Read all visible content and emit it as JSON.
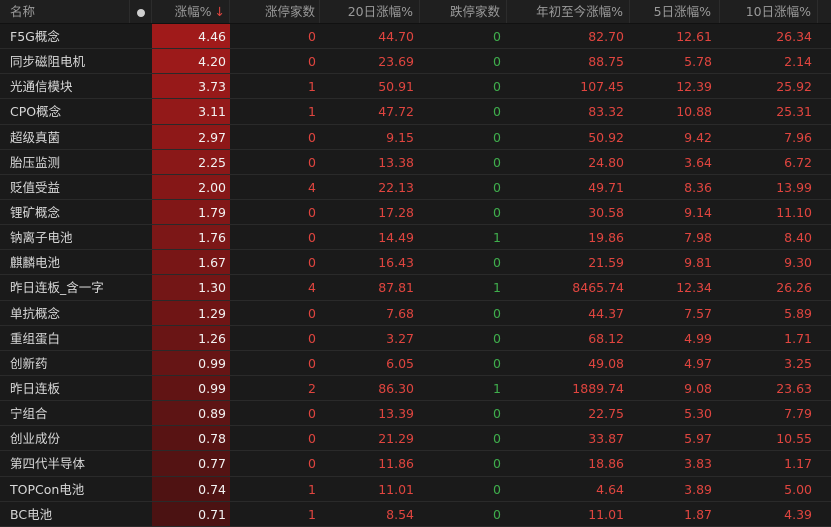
{
  "header": {
    "name": "名称",
    "dot_icon": "circle-dot-icon",
    "change": "涨幅%",
    "sort_icon": "↓",
    "limit_up": "涨停家数",
    "d20": "20日涨幅%",
    "limit_down": "跌停家数",
    "ytd": "年初至今涨幅%",
    "d5": "5日涨幅%",
    "d10": "10日涨幅%"
  },
  "colors": {
    "up": "#e0453f",
    "down": "#3fae4c",
    "highlight_bg": "#a01a1a"
  },
  "rows": [
    {
      "name": "F5G概念",
      "chg": "4.46",
      "zt": "0",
      "d20": "44.70",
      "dt": "0",
      "ytd": "82.70",
      "d5": "12.61",
      "d10": "26.34"
    },
    {
      "name": "同步磁阻电机",
      "chg": "4.20",
      "zt": "0",
      "d20": "23.69",
      "dt": "0",
      "ytd": "88.75",
      "d5": "5.78",
      "d10": "2.14"
    },
    {
      "name": "光通信模块",
      "chg": "3.73",
      "zt": "1",
      "d20": "50.91",
      "dt": "0",
      "ytd": "107.45",
      "d5": "12.39",
      "d10": "25.92"
    },
    {
      "name": "CPO概念",
      "chg": "3.11",
      "zt": "1",
      "d20": "47.72",
      "dt": "0",
      "ytd": "83.32",
      "d5": "10.88",
      "d10": "25.31"
    },
    {
      "name": "超级真菌",
      "chg": "2.97",
      "zt": "0",
      "d20": "9.15",
      "dt": "0",
      "ytd": "50.92",
      "d5": "9.42",
      "d10": "7.96"
    },
    {
      "name": "胎压监测",
      "chg": "2.25",
      "zt": "0",
      "d20": "13.38",
      "dt": "0",
      "ytd": "24.80",
      "d5": "3.64",
      "d10": "6.72"
    },
    {
      "name": "贬值受益",
      "chg": "2.00",
      "zt": "4",
      "d20": "22.13",
      "dt": "0",
      "ytd": "49.71",
      "d5": "8.36",
      "d10": "13.99"
    },
    {
      "name": "锂矿概念",
      "chg": "1.79",
      "zt": "0",
      "d20": "17.28",
      "dt": "0",
      "ytd": "30.58",
      "d5": "9.14",
      "d10": "11.10"
    },
    {
      "name": "钠离子电池",
      "chg": "1.76",
      "zt": "0",
      "d20": "14.49",
      "dt": "1",
      "ytd": "19.86",
      "d5": "7.98",
      "d10": "8.40"
    },
    {
      "name": "麒麟电池",
      "chg": "1.67",
      "zt": "0",
      "d20": "16.43",
      "dt": "0",
      "ytd": "21.59",
      "d5": "9.81",
      "d10": "9.30"
    },
    {
      "name": "昨日连板_含一字",
      "chg": "1.30",
      "zt": "4",
      "d20": "87.81",
      "dt": "1",
      "ytd": "8465.74",
      "d5": "12.34",
      "d10": "26.26"
    },
    {
      "name": "单抗概念",
      "chg": "1.29",
      "zt": "0",
      "d20": "7.68",
      "dt": "0",
      "ytd": "44.37",
      "d5": "7.57",
      "d10": "5.89"
    },
    {
      "name": "重组蛋白",
      "chg": "1.26",
      "zt": "0",
      "d20": "3.27",
      "dt": "0",
      "ytd": "68.12",
      "d5": "4.99",
      "d10": "1.71"
    },
    {
      "name": "创新药",
      "chg": "0.99",
      "zt": "0",
      "d20": "6.05",
      "dt": "0",
      "ytd": "49.08",
      "d5": "4.97",
      "d10": "3.25"
    },
    {
      "name": "昨日连板",
      "chg": "0.99",
      "zt": "2",
      "d20": "86.30",
      "dt": "1",
      "ytd": "1889.74",
      "d5": "9.08",
      "d10": "23.63"
    },
    {
      "name": "宁组合",
      "chg": "0.89",
      "zt": "0",
      "d20": "13.39",
      "dt": "0",
      "ytd": "22.75",
      "d5": "5.30",
      "d10": "7.79"
    },
    {
      "name": "创业成份",
      "chg": "0.78",
      "zt": "0",
      "d20": "21.29",
      "dt": "0",
      "ytd": "33.87",
      "d5": "5.97",
      "d10": "10.55"
    },
    {
      "name": "第四代半导体",
      "chg": "0.77",
      "zt": "0",
      "d20": "11.86",
      "dt": "0",
      "ytd": "18.86",
      "d5": "3.83",
      "d10": "1.17"
    },
    {
      "name": "TOPCon电池",
      "chg": "0.74",
      "zt": "1",
      "d20": "11.01",
      "dt": "0",
      "ytd": "4.64",
      "d5": "3.89",
      "d10": "5.00"
    },
    {
      "name": "BC电池",
      "chg": "0.71",
      "zt": "1",
      "d20": "8.54",
      "dt": "0",
      "ytd": "11.01",
      "d5": "1.87",
      "d10": "4.39"
    }
  ]
}
